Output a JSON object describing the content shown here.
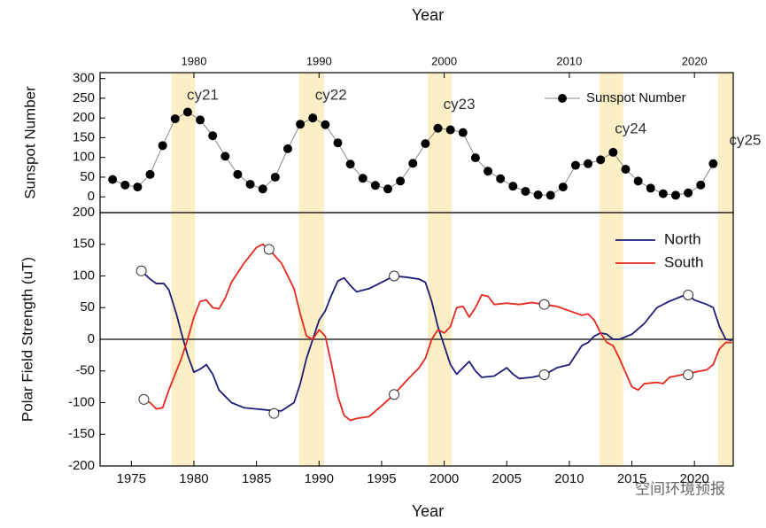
{
  "chart_data": [
    {
      "type": "scatter",
      "xlabel": "Year",
      "ylabel": "Sunspot Number",
      "xlim": [
        1972.5,
        2023.1
      ],
      "ylim": [
        -40,
        315
      ],
      "xticks": [
        1980,
        1990,
        2000,
        2010,
        2020
      ],
      "yticks": [
        0,
        50,
        100,
        150,
        200,
        250,
        300
      ],
      "band_color": "#fcefc6",
      "bands": [
        {
          "label": "cy21",
          "start": 1978.2,
          "end": 1980.1
        },
        {
          "label": "cy22",
          "start": 1988.4,
          "end": 1990.4
        },
        {
          "label": "cy23",
          "start": 1998.7,
          "end": 2000.6
        },
        {
          "label": "cy24",
          "start": 2012.4,
          "end": 2014.3
        },
        {
          "label": "cy25",
          "start": 2021.9,
          "end": 2023.1
        }
      ],
      "series": [
        {
          "name": "Sunspot Number",
          "color": "#000000",
          "x": [
            1973.5,
            1974.5,
            1975.5,
            1976.5,
            1977.5,
            1978.5,
            1979.5,
            1980.5,
            1981.5,
            1982.5,
            1983.5,
            1984.5,
            1985.5,
            1986.5,
            1987.5,
            1988.5,
            1989.5,
            1990.5,
            1991.5,
            1992.5,
            1993.5,
            1994.5,
            1995.5,
            1996.5,
            1997.5,
            1998.5,
            1999.5,
            2000.5,
            2001.5,
            2002.5,
            2003.5,
            2004.5,
            2005.5,
            2006.5,
            2007.5,
            2008.5,
            2009.5,
            2010.5,
            2011.5,
            2012.5,
            2013.5,
            2014.5,
            2015.5,
            2016.5,
            2017.5,
            2018.5,
            2019.5,
            2020.5,
            2021.5
          ],
          "values": [
            44,
            30,
            25,
            57,
            130,
            198,
            215,
            195,
            155,
            103,
            57,
            32,
            20,
            50,
            122,
            184,
            200,
            183,
            137,
            83,
            47,
            29,
            20,
            40,
            85,
            135,
            174,
            170,
            163,
            99,
            65,
            46,
            27,
            14,
            5,
            4,
            25,
            80,
            84,
            94,
            113,
            70,
            40,
            22,
            8,
            4,
            10,
            30,
            84
          ]
        }
      ],
      "legend": "upper right"
    },
    {
      "type": "line",
      "xlabel": "Year",
      "ylabel": "Polar Field Strength (uT)",
      "xlim": [
        1972.5,
        2023.1
      ],
      "ylim": [
        -200,
        200
      ],
      "xticks": [
        1975,
        1980,
        1985,
        1990,
        1995,
        2000,
        2005,
        2010,
        2015,
        2020
      ],
      "yticks": [
        -200,
        -150,
        -100,
        -50,
        0,
        50,
        100,
        150,
        200
      ],
      "band_color": "#fcefc6",
      "bands": [
        {
          "start": 1978.2,
          "end": 1980.1
        },
        {
          "start": 1988.4,
          "end": 1990.4
        },
        {
          "start": 1998.7,
          "end": 2000.6
        },
        {
          "start": 2012.4,
          "end": 2014.3
        },
        {
          "start": 2021.9,
          "end": 2023.1
        }
      ],
      "series": [
        {
          "name": "North",
          "color": "#1c1c78",
          "x": [
            1975.8,
            1976.5,
            1977,
            1977.6,
            1978,
            1978.6,
            1979,
            1979.5,
            1980,
            1980.5,
            1981,
            1981.5,
            1982,
            1983,
            1984,
            1985,
            1986,
            1987,
            1988,
            1988.5,
            1989,
            1989.5,
            1990,
            1990.5,
            1991,
            1991.5,
            1992,
            1992.5,
            1993,
            1994,
            1995,
            1996,
            1997,
            1998,
            1998.5,
            1999,
            1999.5,
            2000,
            2000.5,
            2001,
            2001.5,
            2002,
            2002.5,
            2003,
            2004,
            2005,
            2005.5,
            2006,
            2007,
            2008,
            2009,
            2010,
            2010.5,
            2011,
            2011.5,
            2012,
            2012.5,
            2013,
            2013.5,
            2014,
            2015,
            2016,
            2017,
            2018,
            2019,
            2019.5,
            2020,
            2021,
            2021.5,
            2022,
            2022.5,
            2023
          ],
          "values": [
            108,
            95,
            88,
            88,
            78,
            40,
            10,
            -25,
            -52,
            -47,
            -40,
            -55,
            -80,
            -100,
            -108,
            -110,
            -112,
            -113,
            -100,
            -70,
            -30,
            0,
            30,
            45,
            70,
            92,
            97,
            85,
            75,
            80,
            90,
            100,
            98,
            95,
            90,
            60,
            20,
            -10,
            -40,
            -55,
            -45,
            -35,
            -50,
            -60,
            -58,
            -45,
            -55,
            -62,
            -60,
            -56,
            -45,
            -40,
            -25,
            -10,
            -5,
            5,
            10,
            8,
            0,
            0,
            8,
            25,
            50,
            60,
            68,
            70,
            62,
            55,
            50,
            20,
            0,
            -2
          ],
          "points": {
            "x": [
              1975.8,
              1986.4,
              1996,
              2008,
              2019.5
            ],
            "values": [
              108,
              -117,
              100,
              -56,
              70
            ]
          }
        },
        {
          "name": "South",
          "color": "#e8281e",
          "x": [
            1976,
            1976.5,
            1977,
            1977.5,
            1978,
            1979,
            1979.5,
            1980,
            1980.5,
            1981,
            1981.5,
            1982,
            1982.5,
            1983,
            1984,
            1985,
            1985.5,
            1986,
            1987,
            1988,
            1988.5,
            1989,
            1989.5,
            1990,
            1990.5,
            1991,
            1991.5,
            1992,
            1992.5,
            1993,
            1994,
            1995,
            1996,
            1997,
            1998,
            1998.5,
            1999,
            1999.5,
            2000,
            2000.5,
            2001,
            2001.5,
            2002,
            2002.5,
            2003,
            2003.5,
            2004,
            2005,
            2006,
            2007,
            2008,
            2009,
            2010,
            2011,
            2011.5,
            2012,
            2012.5,
            2013,
            2013.5,
            2014,
            2015,
            2015.5,
            2016,
            2017,
            2017.5,
            2018,
            2019,
            2020,
            2021,
            2021.5,
            2022,
            2022.5,
            2023
          ],
          "values": [
            -95,
            -100,
            -110,
            -108,
            -80,
            -30,
            0,
            35,
            60,
            62,
            50,
            48,
            65,
            90,
            120,
            145,
            150,
            142,
            120,
            80,
            40,
            5,
            0,
            15,
            5,
            -40,
            -90,
            -120,
            -128,
            -125,
            -122,
            -105,
            -87,
            -65,
            -45,
            -30,
            0,
            15,
            10,
            20,
            50,
            52,
            35,
            50,
            70,
            68,
            55,
            57,
            55,
            58,
            55,
            52,
            45,
            38,
            40,
            30,
            10,
            -5,
            -10,
            -30,
            -75,
            -80,
            -70,
            -68,
            -70,
            -60,
            -56,
            -52,
            -48,
            -40,
            -15,
            -5,
            -5
          ],
          "points": {
            "x": [
              1976,
              1986,
              1996,
              2008,
              2019.5
            ],
            "values": [
              -95,
              142,
              -87,
              55,
              -56
            ]
          }
        }
      ],
      "legend": "upper right"
    }
  ],
  "watermark": "空间环境预报"
}
